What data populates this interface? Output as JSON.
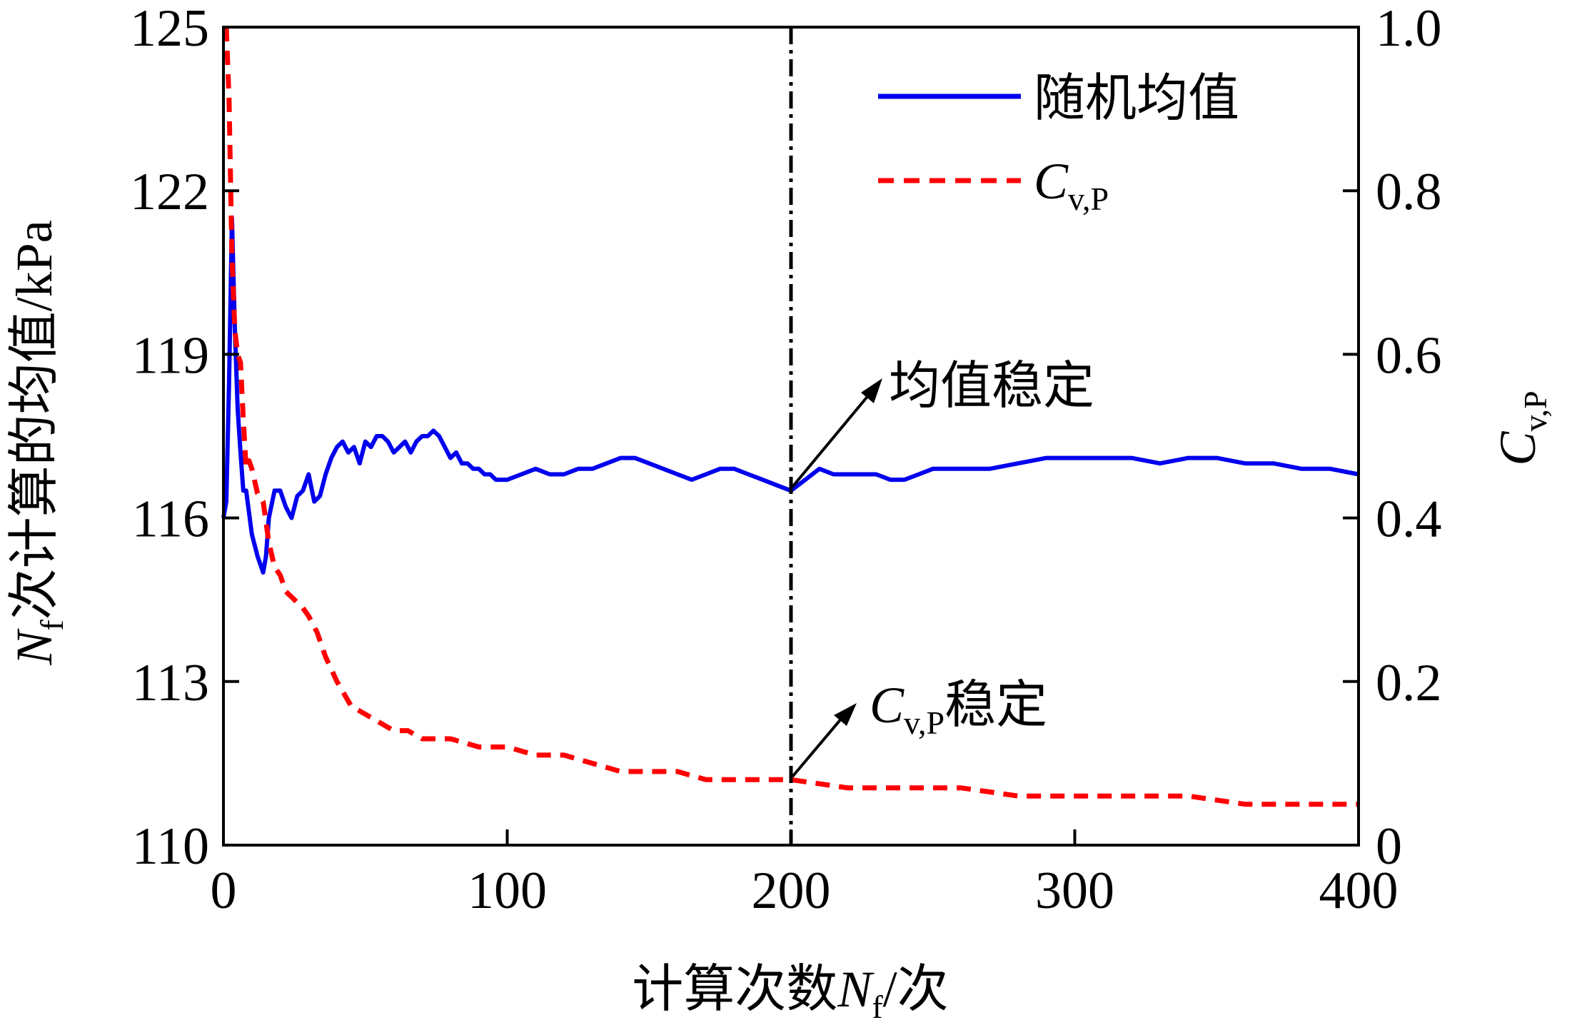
{
  "chart_data": {
    "type": "line",
    "xlabel": {
      "prefix": "计算次数",
      "var": "N",
      "sub": "f",
      "suffix": "/次"
    },
    "ylabel_left": {
      "var": "N",
      "sub": "f",
      "suffix": "次计算的均值/kPa"
    },
    "ylabel_right": {
      "var": "C",
      "sub": "v,P"
    },
    "xlim": [
      0,
      400
    ],
    "ylim_left": [
      110,
      125
    ],
    "ylim_right": [
      0,
      1.0
    ],
    "xticks": [
      "0",
      "100",
      "200",
      "300",
      "400"
    ],
    "yticks_left": [
      "110",
      "113",
      "116",
      "119",
      "122",
      "125"
    ],
    "yticks_right": [
      "0",
      "0.2",
      "0.4",
      "0.6",
      "0.8",
      "1.0"
    ],
    "grid": false,
    "legend_position": "top-right",
    "vline_x": 200,
    "series": [
      {
        "name": "随机均值",
        "axis": "left",
        "color": "#0000ee",
        "style": "solid",
        "x": [
          0,
          1,
          2,
          3,
          4,
          5,
          6,
          7,
          8,
          10,
          12,
          14,
          15,
          16,
          18,
          20,
          22,
          24,
          26,
          28,
          30,
          32,
          34,
          36,
          38,
          40,
          42,
          44,
          46,
          48,
          50,
          52,
          54,
          56,
          58,
          60,
          62,
          64,
          66,
          68,
          70,
          72,
          74,
          76,
          78,
          80,
          82,
          84,
          86,
          88,
          90,
          92,
          94,
          96,
          98,
          100,
          105,
          110,
          115,
          120,
          125,
          130,
          135,
          140,
          145,
          150,
          155,
          160,
          165,
          170,
          175,
          180,
          185,
          190,
          195,
          200,
          205,
          210,
          215,
          220,
          225,
          230,
          235,
          240,
          245,
          250,
          255,
          260,
          270,
          280,
          290,
          300,
          310,
          320,
          330,
          340,
          350,
          360,
          370,
          380,
          390,
          400
        ],
        "y": [
          116.0,
          116.3,
          118.5,
          121.5,
          119.5,
          118.0,
          117.2,
          116.5,
          116.5,
          115.7,
          115.3,
          115.0,
          115.3,
          116.0,
          116.5,
          116.5,
          116.2,
          116.0,
          116.4,
          116.5,
          116.8,
          116.3,
          116.4,
          116.8,
          117.1,
          117.3,
          117.4,
          117.2,
          117.3,
          117.0,
          117.4,
          117.3,
          117.5,
          117.5,
          117.4,
          117.2,
          117.3,
          117.4,
          117.2,
          117.4,
          117.5,
          117.5,
          117.6,
          117.5,
          117.3,
          117.1,
          117.2,
          117.0,
          117.0,
          116.9,
          116.9,
          116.8,
          116.8,
          116.7,
          116.7,
          116.7,
          116.8,
          116.9,
          116.8,
          116.8,
          116.9,
          116.9,
          117.0,
          117.1,
          117.1,
          117.0,
          116.9,
          116.8,
          116.7,
          116.8,
          116.9,
          116.9,
          116.8,
          116.7,
          116.6,
          116.5,
          116.7,
          116.9,
          116.8,
          116.8,
          116.8,
          116.8,
          116.7,
          116.7,
          116.8,
          116.9,
          116.9,
          116.9,
          116.9,
          117.0,
          117.1,
          117.1,
          117.1,
          117.1,
          117.0,
          117.1,
          117.1,
          117.0,
          117.0,
          116.9,
          116.9,
          116.8
        ]
      },
      {
        "name": "C_v,P",
        "axis": "right",
        "color": "#ff0000",
        "style": "dashed",
        "x": [
          1,
          2,
          3,
          4,
          5,
          6,
          7,
          8,
          9,
          10,
          12,
          14,
          16,
          18,
          20,
          22,
          25,
          28,
          30,
          33,
          36,
          40,
          45,
          50,
          55,
          60,
          65,
          70,
          75,
          80,
          90,
          100,
          110,
          120,
          130,
          140,
          150,
          160,
          170,
          180,
          190,
          200,
          220,
          240,
          260,
          280,
          300,
          320,
          340,
          360,
          380,
          400
        ],
        "y": [
          1.0,
          0.91,
          0.72,
          0.63,
          0.6,
          0.59,
          0.52,
          0.46,
          0.47,
          0.46,
          0.43,
          0.42,
          0.37,
          0.34,
          0.33,
          0.31,
          0.3,
          0.29,
          0.28,
          0.26,
          0.23,
          0.2,
          0.17,
          0.16,
          0.15,
          0.14,
          0.14,
          0.13,
          0.13,
          0.13,
          0.12,
          0.12,
          0.11,
          0.11,
          0.1,
          0.09,
          0.09,
          0.09,
          0.08,
          0.08,
          0.08,
          0.08,
          0.07,
          0.07,
          0.07,
          0.06,
          0.06,
          0.06,
          0.06,
          0.05,
          0.05,
          0.05
        ]
      }
    ],
    "legend": [
      {
        "text": "随机均值"
      },
      {
        "var": "C",
        "sub": "v,P"
      }
    ],
    "annotations": [
      {
        "text": "均值稳定"
      },
      {
        "var": "C",
        "sub": "v,P",
        "text": "稳定"
      }
    ]
  }
}
